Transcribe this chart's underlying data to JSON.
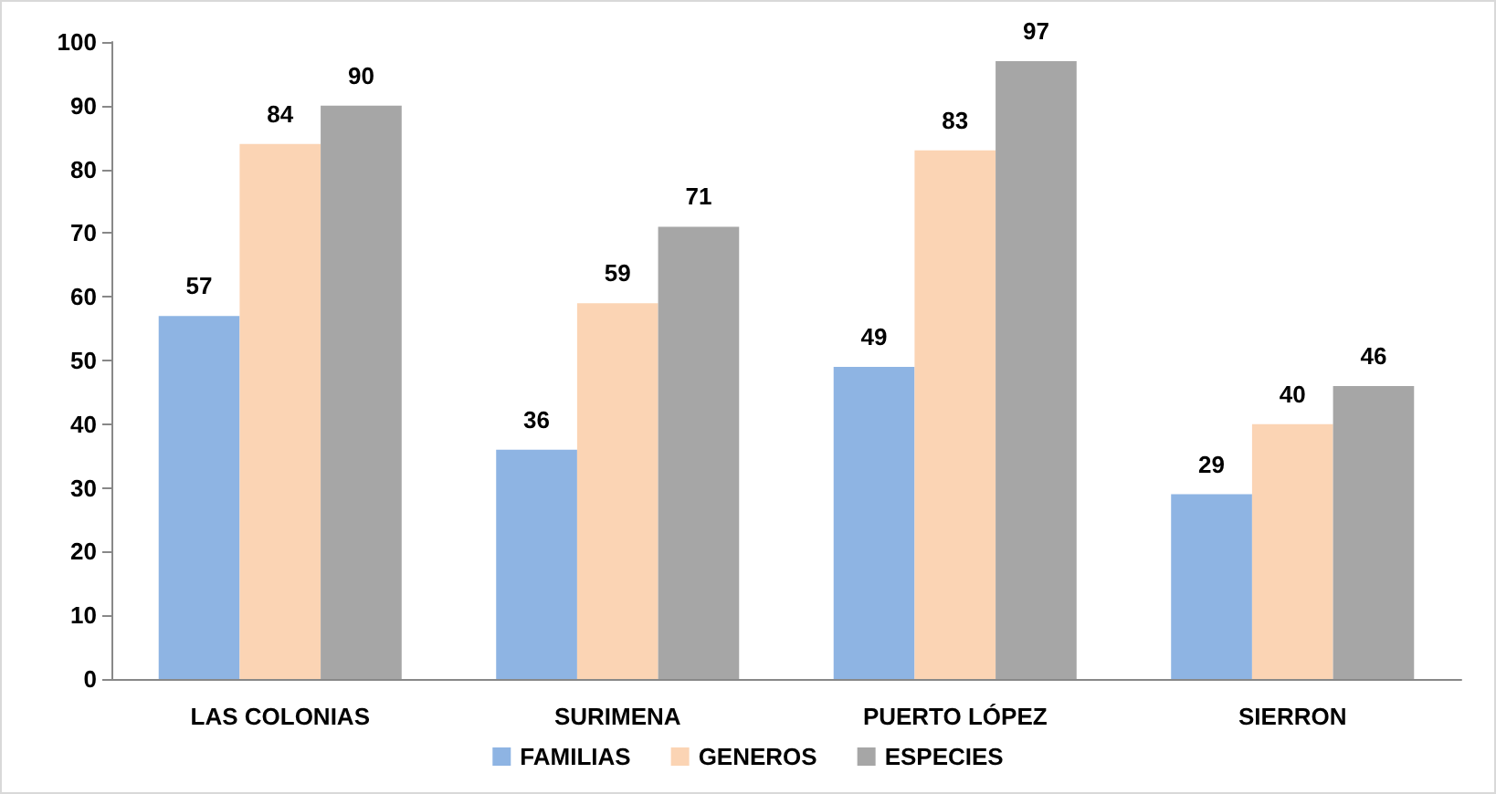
{
  "chart_data": {
    "type": "bar",
    "categories": [
      "LAS COLONIAS",
      "SURIMENA",
      "PUERTO LÓPEZ",
      "SIERRON"
    ],
    "series": [
      {
        "name": "FAMILIAS",
        "color": "#8eb4e3",
        "values": [
          57,
          36,
          49,
          29
        ]
      },
      {
        "name": "GENEROS",
        "color": "#fbd4b4",
        "values": [
          84,
          59,
          83,
          40
        ]
      },
      {
        "name": "ESPECIES",
        "color": "#a6a6a6",
        "values": [
          90,
          71,
          97,
          46
        ]
      }
    ],
    "ylim": [
      0,
      100
    ],
    "yticks": [
      0,
      10,
      20,
      30,
      40,
      50,
      60,
      70,
      80,
      90,
      100
    ],
    "grid": false,
    "legend": "bottom",
    "data_labels": true
  }
}
